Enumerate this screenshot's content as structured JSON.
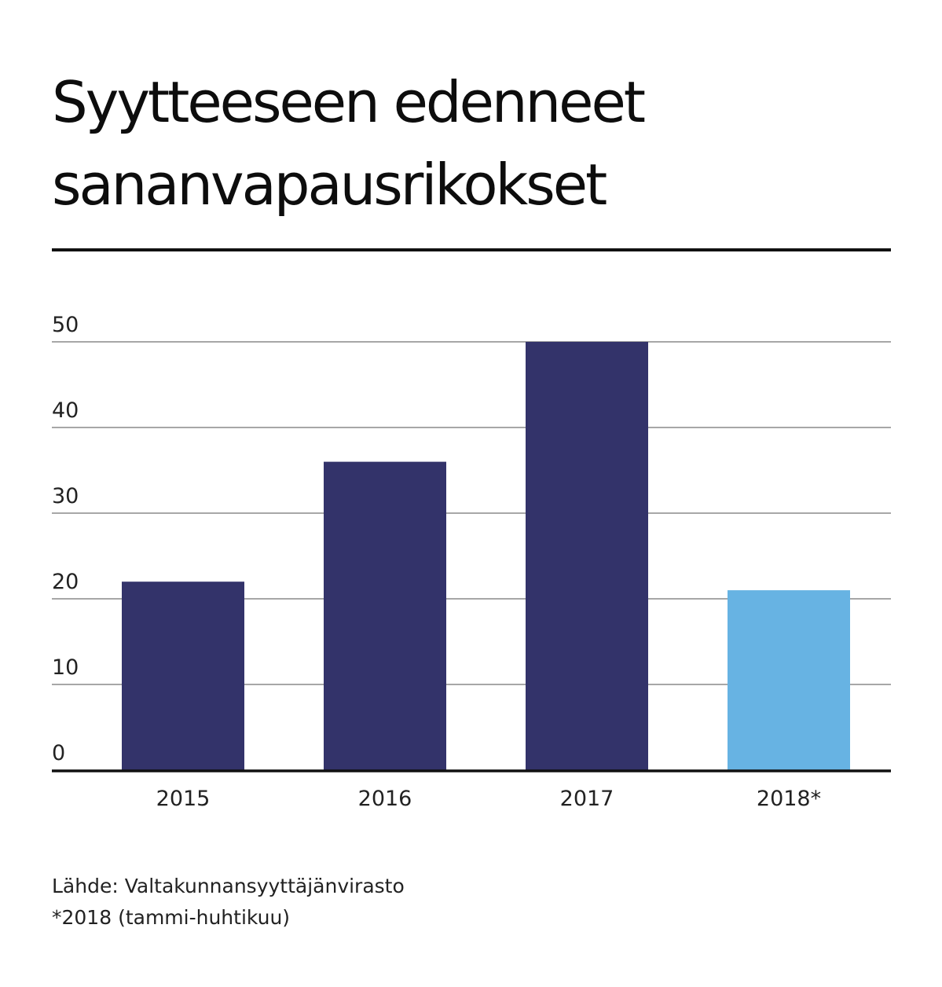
{
  "title": {
    "line1": "Syytteeseen edenneet",
    "line2": "sananvapausrikokset"
  },
  "chart_data": {
    "type": "bar",
    "categories": [
      "2015",
      "2016",
      "2017",
      "2018*"
    ],
    "values": [
      22,
      36,
      50,
      21
    ],
    "bar_colors": [
      "#33336a",
      "#33336a",
      "#33336a",
      "#67b3e3"
    ],
    "ylim": [
      0,
      50
    ],
    "yticks": [
      0,
      10,
      20,
      30,
      40,
      50
    ],
    "grid": true,
    "xlabel": "",
    "ylabel": ""
  },
  "footer": {
    "source": "Lähde: Valtakunnansyyttäjänvirasto",
    "note": "*2018 (tammi-huhtikuu)"
  }
}
